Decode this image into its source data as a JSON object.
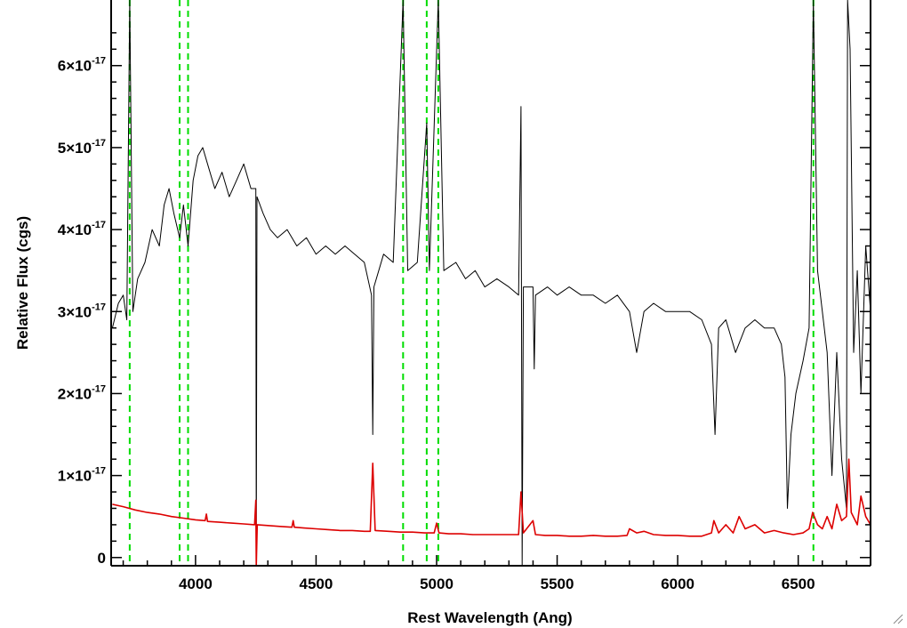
{
  "chart_data": {
    "type": "line",
    "xlabel": "Rest Wavelength (Ang)",
    "ylabel": "Relative Flux (cgs)",
    "xlim": [
      3650,
      6800
    ],
    "ylim": [
      -1e-18,
      6.8e-17
    ],
    "x_ticks": [
      {
        "value": 4000,
        "label": "4000"
      },
      {
        "value": 4500,
        "label": "4500"
      },
      {
        "value": 5000,
        "label": "5000"
      },
      {
        "value": 5500,
        "label": "5500"
      },
      {
        "value": 6000,
        "label": "6000"
      },
      {
        "value": 6500,
        "label": "6500"
      }
    ],
    "y_ticks": [
      {
        "value": 0,
        "mantissa": "0",
        "exponent": ""
      },
      {
        "value": 1e-17,
        "mantissa": "1×10",
        "exponent": "-17"
      },
      {
        "value": 2e-17,
        "mantissa": "2×10",
        "exponent": "-17"
      },
      {
        "value": 3e-17,
        "mantissa": "3×10",
        "exponent": "-17"
      },
      {
        "value": 4e-17,
        "mantissa": "4×10",
        "exponent": "-17"
      },
      {
        "value": 5e-17,
        "mantissa": "5×10",
        "exponent": "-17"
      },
      {
        "value": 6e-17,
        "mantissa": "6×10",
        "exponent": "-17"
      }
    ],
    "reference_lines": {
      "color": "#00dd00",
      "style": "dashed",
      "x": [
        3727,
        3934,
        3969,
        4861,
        4959,
        5007,
        6563
      ]
    },
    "series": [
      {
        "color": "#000000",
        "points": [
          [
            3655,
            2.8e-17
          ],
          [
            3680,
            3.1e-17
          ],
          [
            3700,
            3.2e-17
          ],
          [
            3715,
            2.9e-17
          ],
          [
            3727,
            6.8e-17
          ],
          [
            3740,
            3e-17
          ],
          [
            3760,
            3.4e-17
          ],
          [
            3790,
            3.6e-17
          ],
          [
            3820,
            4e-17
          ],
          [
            3850,
            3.8e-17
          ],
          [
            3870,
            4.3e-17
          ],
          [
            3890,
            4.5e-17
          ],
          [
            3910,
            4.2e-17
          ],
          [
            3934,
            3.9e-17
          ],
          [
            3950,
            4.3e-17
          ],
          [
            3969,
            3.8e-17
          ],
          [
            3990,
            4.6e-17
          ],
          [
            4010,
            4.9e-17
          ],
          [
            4030,
            5e-17
          ],
          [
            4050,
            4.8e-17
          ],
          [
            4080,
            4.5e-17
          ],
          [
            4110,
            4.7e-17
          ],
          [
            4140,
            4.4e-17
          ],
          [
            4170,
            4.6e-17
          ],
          [
            4200,
            4.8e-17
          ],
          [
            4230,
            4.5e-17
          ],
          [
            4250,
            4.5e-17
          ],
          [
            4252,
            -1e-18
          ],
          [
            4255,
            4.4e-17
          ],
          [
            4280,
            4.2e-17
          ],
          [
            4310,
            4e-17
          ],
          [
            4340,
            3.9e-17
          ],
          [
            4380,
            4e-17
          ],
          [
            4420,
            3.8e-17
          ],
          [
            4460,
            3.9e-17
          ],
          [
            4500,
            3.7e-17
          ],
          [
            4540,
            3.8e-17
          ],
          [
            4580,
            3.7e-17
          ],
          [
            4620,
            3.8e-17
          ],
          [
            4660,
            3.7e-17
          ],
          [
            4700,
            3.6e-17
          ],
          [
            4730,
            3.2e-17
          ],
          [
            4735,
            1.5e-17
          ],
          [
            4740,
            3.3e-17
          ],
          [
            4780,
            3.7e-17
          ],
          [
            4820,
            3.6e-17
          ],
          [
            4861,
            6.8e-17
          ],
          [
            4880,
            3.5e-17
          ],
          [
            4920,
            3.6e-17
          ],
          [
            4959,
            5.3e-17
          ],
          [
            4970,
            3.5e-17
          ],
          [
            5007,
            6.8e-17
          ],
          [
            5030,
            3.5e-17
          ],
          [
            5080,
            3.6e-17
          ],
          [
            5120,
            3.4e-17
          ],
          [
            5160,
            3.5e-17
          ],
          [
            5200,
            3.3e-17
          ],
          [
            5250,
            3.4e-17
          ],
          [
            5300,
            3.3e-17
          ],
          [
            5340,
            3.2e-17
          ],
          [
            5350,
            5.5e-17
          ],
          [
            5355,
            -1e-18
          ],
          [
            5360,
            3.3e-17
          ],
          [
            5400,
            3.3e-17
          ],
          [
            5405,
            2.3e-17
          ],
          [
            5410,
            3.2e-17
          ],
          [
            5460,
            3.3e-17
          ],
          [
            5500,
            3.2e-17
          ],
          [
            5550,
            3.3e-17
          ],
          [
            5600,
            3.2e-17
          ],
          [
            5650,
            3.2e-17
          ],
          [
            5700,
            3.1e-17
          ],
          [
            5750,
            3.2e-17
          ],
          [
            5800,
            3e-17
          ],
          [
            5830,
            2.5e-17
          ],
          [
            5860,
            3e-17
          ],
          [
            5900,
            3.1e-17
          ],
          [
            5950,
            3e-17
          ],
          [
            6000,
            3e-17
          ],
          [
            6050,
            3e-17
          ],
          [
            6100,
            2.9e-17
          ],
          [
            6140,
            2.6e-17
          ],
          [
            6155,
            1.5e-17
          ],
          [
            6170,
            2.8e-17
          ],
          [
            6200,
            2.9e-17
          ],
          [
            6240,
            2.5e-17
          ],
          [
            6280,
            2.8e-17
          ],
          [
            6320,
            2.9e-17
          ],
          [
            6360,
            2.8e-17
          ],
          [
            6400,
            2.8e-17
          ],
          [
            6430,
            2.6e-17
          ],
          [
            6445,
            2.2e-17
          ],
          [
            6455,
            6e-18
          ],
          [
            6470,
            1.5e-17
          ],
          [
            6490,
            2e-17
          ],
          [
            6520,
            2.4e-17
          ],
          [
            6545,
            2.8e-17
          ],
          [
            6563,
            6.8e-17
          ],
          [
            6580,
            3.5e-17
          ],
          [
            6600,
            3e-17
          ],
          [
            6620,
            2.5e-17
          ],
          [
            6640,
            1e-17
          ],
          [
            6660,
            2.5e-17
          ],
          [
            6680,
            1.2e-17
          ],
          [
            6700,
            6e-18
          ],
          [
            6705,
            6.8e-17
          ],
          [
            6715,
            6.2e-17
          ],
          [
            6730,
            2.5e-17
          ],
          [
            6745,
            3.5e-17
          ],
          [
            6760,
            2e-17
          ],
          [
            6780,
            3.8e-17
          ],
          [
            6800,
            3e-17
          ]
        ]
      },
      {
        "color": "#dd0000",
        "points": [
          [
            3655,
            6.5e-18
          ],
          [
            3700,
            6.2e-18
          ],
          [
            3750,
            5.8e-18
          ],
          [
            3800,
            5.5e-18
          ],
          [
            3850,
            5.3e-18
          ],
          [
            3900,
            5e-18
          ],
          [
            3950,
            4.8e-18
          ],
          [
            4000,
            4.6e-18
          ],
          [
            4040,
            4.5e-18
          ],
          [
            4045,
            5.3e-18
          ],
          [
            4050,
            4.4e-18
          ],
          [
            4100,
            4.3e-18
          ],
          [
            4150,
            4.2e-18
          ],
          [
            4200,
            4.1e-18
          ],
          [
            4245,
            4e-18
          ],
          [
            4250,
            7e-18
          ],
          [
            4252,
            -1e-18
          ],
          [
            4256,
            4e-18
          ],
          [
            4300,
            3.9e-18
          ],
          [
            4350,
            3.8e-18
          ],
          [
            4400,
            3.7e-18
          ],
          [
            4405,
            4.5e-18
          ],
          [
            4410,
            3.7e-18
          ],
          [
            4450,
            3.6e-18
          ],
          [
            4500,
            3.5e-18
          ],
          [
            4550,
            3.4e-18
          ],
          [
            4600,
            3.3e-18
          ],
          [
            4650,
            3.3e-18
          ],
          [
            4700,
            3.2e-18
          ],
          [
            4725,
            3.2e-18
          ],
          [
            4735,
            1.15e-17
          ],
          [
            4745,
            3.3e-18
          ],
          [
            4800,
            3.2e-18
          ],
          [
            4850,
            3.1e-18
          ],
          [
            4900,
            3.1e-18
          ],
          [
            4950,
            3e-18
          ],
          [
            4990,
            3e-18
          ],
          [
            5000,
            4.2e-18
          ],
          [
            5010,
            3e-18
          ],
          [
            5050,
            2.9e-18
          ],
          [
            5100,
            2.9e-18
          ],
          [
            5150,
            2.8e-18
          ],
          [
            5200,
            2.8e-18
          ],
          [
            5250,
            2.8e-18
          ],
          [
            5300,
            2.8e-18
          ],
          [
            5340,
            2.8e-18
          ],
          [
            5350,
            8e-18
          ],
          [
            5360,
            3e-18
          ],
          [
            5400,
            4.5e-18
          ],
          [
            5410,
            2.8e-18
          ],
          [
            5450,
            2.7e-18
          ],
          [
            5500,
            2.7e-18
          ],
          [
            5550,
            2.6e-18
          ],
          [
            5600,
            2.6e-18
          ],
          [
            5650,
            2.7e-18
          ],
          [
            5700,
            2.6e-18
          ],
          [
            5750,
            2.6e-18
          ],
          [
            5790,
            2.7e-18
          ],
          [
            5800,
            3.5e-18
          ],
          [
            5830,
            3e-18
          ],
          [
            5860,
            3.2e-18
          ],
          [
            5900,
            2.8e-18
          ],
          [
            5950,
            2.7e-18
          ],
          [
            6000,
            2.7e-18
          ],
          [
            6050,
            2.6e-18
          ],
          [
            6100,
            2.6e-18
          ],
          [
            6140,
            3e-18
          ],
          [
            6150,
            4.5e-18
          ],
          [
            6170,
            3e-18
          ],
          [
            6200,
            4e-18
          ],
          [
            6230,
            3e-18
          ],
          [
            6255,
            5e-18
          ],
          [
            6280,
            3.5e-18
          ],
          [
            6320,
            4e-18
          ],
          [
            6360,
            3e-18
          ],
          [
            6400,
            3.3e-18
          ],
          [
            6440,
            3e-18
          ],
          [
            6480,
            2.8e-18
          ],
          [
            6520,
            3e-18
          ],
          [
            6545,
            3.5e-18
          ],
          [
            6560,
            5.5e-18
          ],
          [
            6580,
            4e-18
          ],
          [
            6600,
            3.5e-18
          ],
          [
            6620,
            5e-18
          ],
          [
            6640,
            3.5e-18
          ],
          [
            6660,
            6.5e-18
          ],
          [
            6680,
            4.5e-18
          ],
          [
            6700,
            5e-18
          ],
          [
            6710,
            1.2e-17
          ],
          [
            6720,
            5.5e-18
          ],
          [
            6745,
            4e-18
          ],
          [
            6760,
            7.5e-18
          ],
          [
            6780,
            5e-18
          ],
          [
            6800,
            4e-18
          ]
        ]
      }
    ]
  }
}
